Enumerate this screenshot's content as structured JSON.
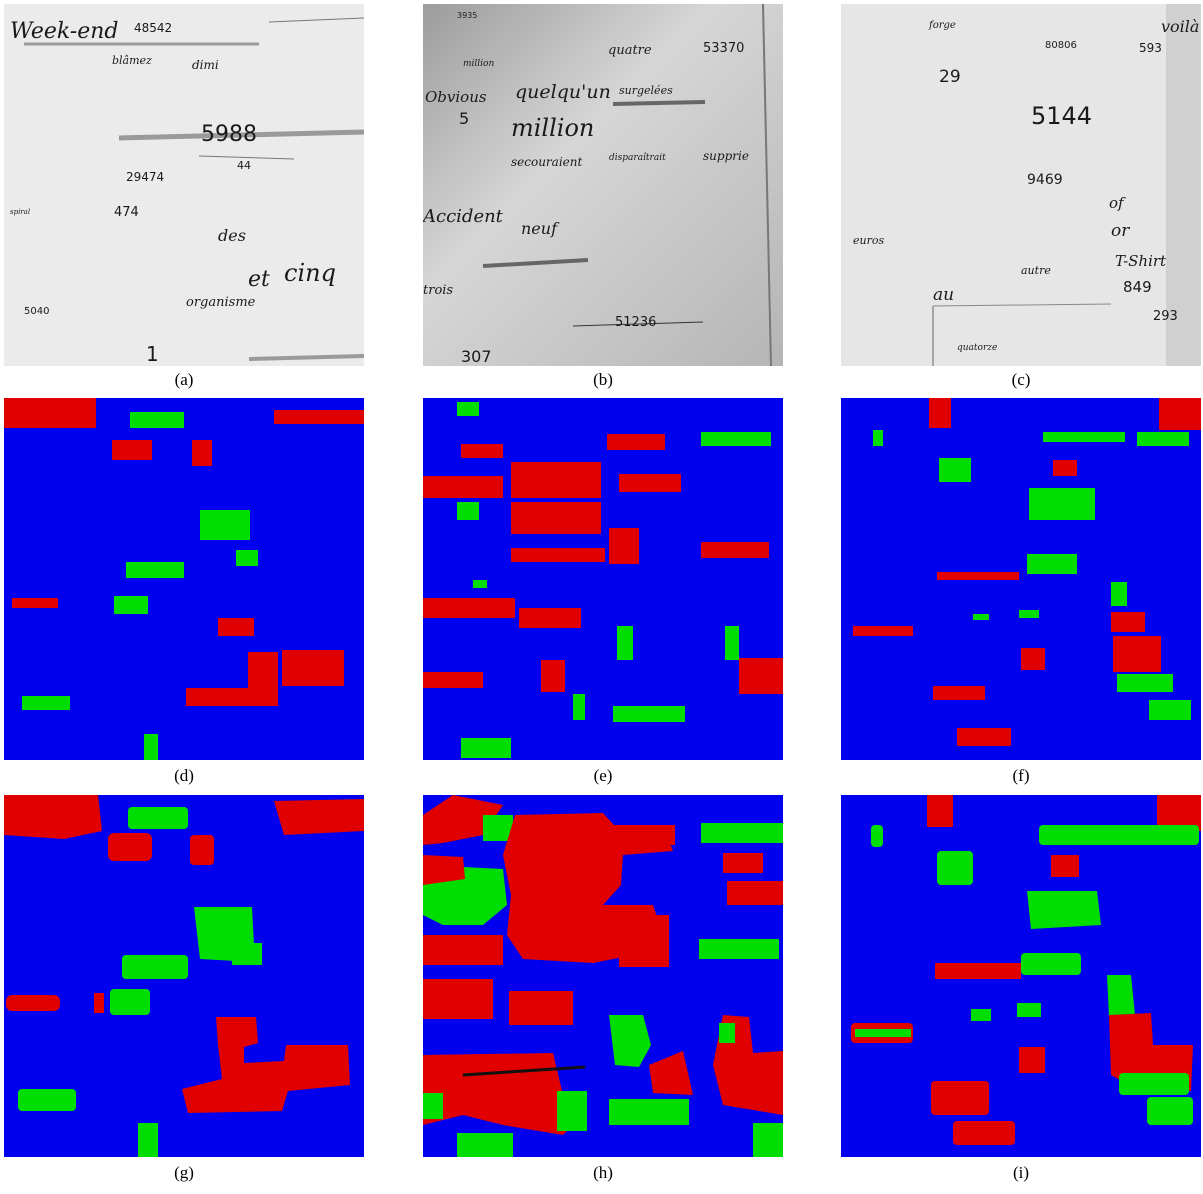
{
  "colors": {
    "paper": "#ebebeb",
    "paper_b": "#c9c9c9",
    "paper_c": "#e6e6e6",
    "ink": "#1a1a1a",
    "text_class": "#e00000",
    "number_class": "#00dd00",
    "background_class": "#0000ee"
  },
  "captions": [
    "(a)",
    "(b)",
    "(c)",
    "(d)",
    "(e)",
    "(f)",
    "(g)",
    "(h)",
    "(i)"
  ],
  "docs": [
    {
      "words": [
        {
          "t": "Week-end",
          "c": "text"
        },
        {
          "t": "48542",
          "c": "number"
        },
        {
          "t": "blâmez",
          "c": "text"
        },
        {
          "t": "dimi",
          "c": "text"
        },
        {
          "t": "5988",
          "c": "number"
        },
        {
          "t": "44",
          "c": "number"
        },
        {
          "t": "29474",
          "c": "number"
        },
        {
          "t": "spiral",
          "c": "text"
        },
        {
          "t": "474",
          "c": "number"
        },
        {
          "t": "des",
          "c": "text"
        },
        {
          "t": "et",
          "c": "text"
        },
        {
          "t": "cinq",
          "c": "text"
        },
        {
          "t": "organisme",
          "c": "text"
        },
        {
          "t": "5040",
          "c": "number"
        },
        {
          "t": "1",
          "c": "number"
        }
      ]
    },
    {
      "words": [
        {
          "t": "3935",
          "c": "number"
        },
        {
          "t": "million",
          "c": "text"
        },
        {
          "t": "quatre",
          "c": "text"
        },
        {
          "t": "53370",
          "c": "number"
        },
        {
          "t": "Obvious",
          "c": "text"
        },
        {
          "t": "quelqu'un",
          "c": "text"
        },
        {
          "t": "surgelées",
          "c": "text"
        },
        {
          "t": "5",
          "c": "number"
        },
        {
          "t": "million",
          "c": "text"
        },
        {
          "t": "secouraient",
          "c": "text"
        },
        {
          "t": "disparaîtrait",
          "c": "text"
        },
        {
          "t": "supprie",
          "c": "text"
        },
        {
          "t": "Accident",
          "c": "text"
        },
        {
          "t": "neuf",
          "c": "text"
        },
        {
          "t": "trois",
          "c": "text"
        },
        {
          "t": "51236",
          "c": "number"
        },
        {
          "t": "307",
          "c": "number"
        }
      ]
    },
    {
      "words": [
        {
          "t": "forge",
          "c": "text"
        },
        {
          "t": "voilà",
          "c": "text"
        },
        {
          "t": "80806",
          "c": "number"
        },
        {
          "t": "593",
          "c": "number"
        },
        {
          "t": "29",
          "c": "number"
        },
        {
          "t": "5144",
          "c": "number"
        },
        {
          "t": "9469",
          "c": "number"
        },
        {
          "t": "of",
          "c": "number"
        },
        {
          "t": "or",
          "c": "text"
        },
        {
          "t": "euros",
          "c": "text"
        },
        {
          "t": "autre",
          "c": "text"
        },
        {
          "t": "T-Shirt",
          "c": "text"
        },
        {
          "t": "849",
          "c": "number"
        },
        {
          "t": "au",
          "c": "text"
        },
        {
          "t": "293",
          "c": "number"
        },
        {
          "t": "quatorze",
          "c": "text"
        }
      ]
    }
  ]
}
